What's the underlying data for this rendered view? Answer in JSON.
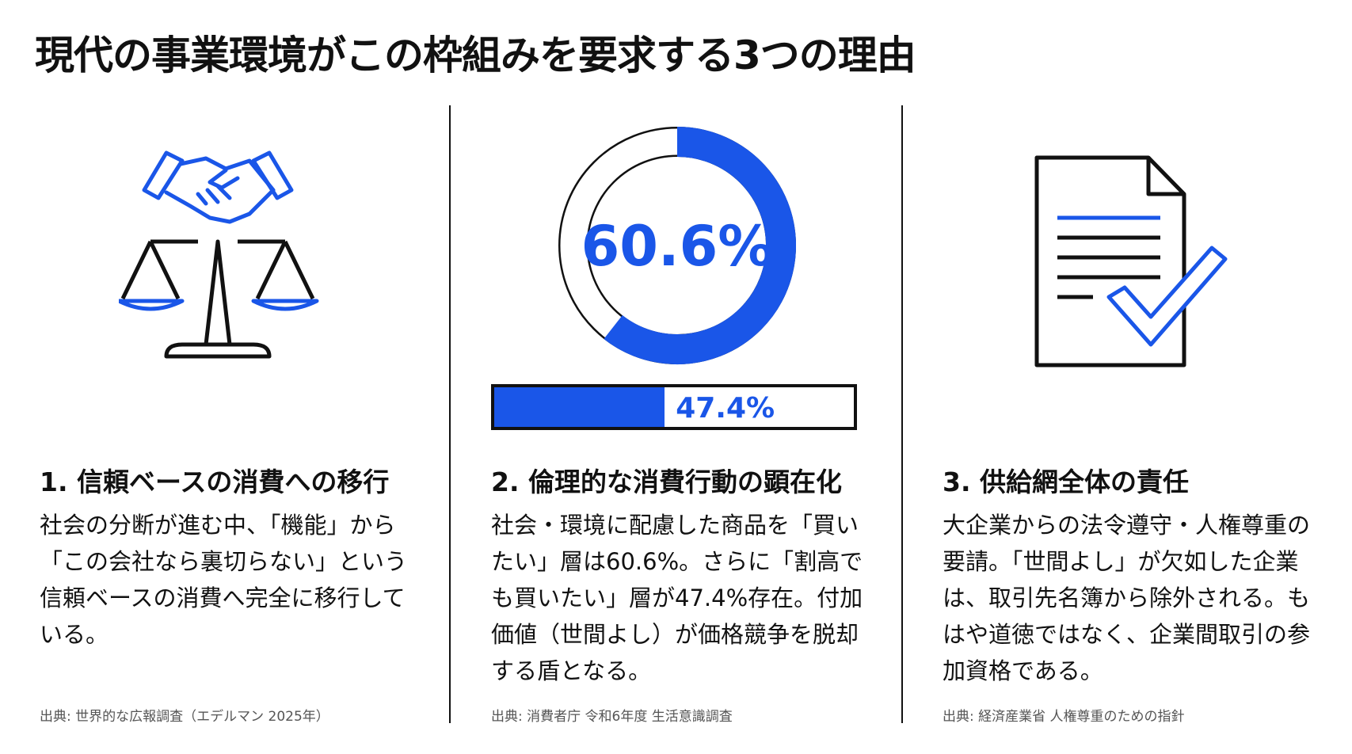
{
  "title": "現代の事業環境がこの枠組みを要求する3つの理由",
  "columns": [
    {
      "icon": "handshake-scales-icon",
      "heading": "1. 信頼ベースの消費への移行",
      "body": "社会の分断が進む中、「機能」から「この会社なら裏切らない」という信頼ベースの消費へ完全に移行している。",
      "source": "出典: 世界的な広報調査（エデルマン 2025年）"
    },
    {
      "icon": "donut-and-bar-icon",
      "donut_label": "60.6%",
      "donut_value": 60.6,
      "bar_label": "47.4%",
      "bar_value": 47.4,
      "heading": "2. 倫理的な消費行動の顕在化",
      "body": "社会・環境に配慮した商品を「買いたい」層は60.6%。さらに「割高でも買いたい」層が47.4%存在。付加価値（世間よし）が価格競争を脱却する盾となる。",
      "source": "出典: 消費者庁 令和6年度 生活意識調査"
    },
    {
      "icon": "document-check-icon",
      "heading": "3. 供給網全体の責任",
      "body": "大企業からの法令遵守・人権尊重の要請。「世間よし」が欠如した企業は、取引先名簿から除外される。もはや道徳ではなく、企業間取引の参加資格である。",
      "source": "出典: 経済産業省 人権尊重のための指針"
    }
  ],
  "colors": {
    "accent": "#1a56e8",
    "text": "#111111"
  }
}
